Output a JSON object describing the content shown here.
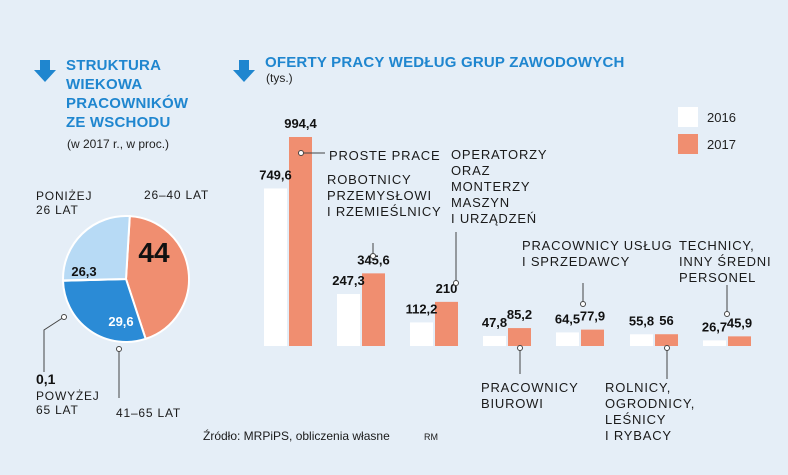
{
  "left": {
    "title": "STRUKTURA\nWIEKOWA\nPRACOWNIKÓW\nZE WSCHODU",
    "subtitle": "(w 2017 r., w proc.)"
  },
  "right": {
    "title": "OFERTY PRACY WEDŁUG GRUP ZAWODOWYCH",
    "subtitle": "(tys.)"
  },
  "source": "Źródło: MRPiPS, obliczenia własne",
  "author": "RM",
  "colors": {
    "accent": "#1f86cf",
    "y2016": "#ffffff",
    "y2017": "#f08e70",
    "pie_light": "#b7daf5",
    "pie_mid": "#2b8bd6",
    "pie_orange": "#f08e70"
  },
  "chart_data": [
    {
      "type": "pie",
      "title": "STRUKTURA WIEKOWA PRACOWNIKÓW ZE WSCHODU",
      "slices": [
        {
          "label": "26–40 LAT",
          "value": 44,
          "display": "44"
        },
        {
          "label": "41–65 LAT",
          "value": 29.6,
          "display": "29,6"
        },
        {
          "label": "POWYŻEJ 65 LAT",
          "value": 0.1,
          "display": "0,1"
        },
        {
          "label": "PONIŻEJ 26 LAT",
          "value": 26.3,
          "display": "26,3"
        }
      ]
    },
    {
      "type": "bar",
      "title": "OFERTY PRACY WEDŁUG GRUP ZAWODOWYCH",
      "unit": "(tys.)",
      "legend": [
        "2016",
        "2017"
      ],
      "categories": [
        "PROSTE PRACE",
        "ROBOTNICY\nPRZEMYSŁOWI\nI RZEMIEŚLNICY",
        "OPERATORZY\nORAZ\nMONTERZY\nMASZYN\nI URZĄDZEŃ",
        "PRACOWNICY\nBIUROWI",
        "PRACOWNICY USŁUG\nI SPRZEDAWCY",
        "ROLNICY,\nOGRODNICY,\nLEŚNICY\nI RYBACY",
        "TECHNICY,\nINNY ŚREDNI\nPERSONEL"
      ],
      "series": [
        {
          "name": "2016",
          "values": [
            749.6,
            247.3,
            112.2,
            47.8,
            64.5,
            55.8,
            26.7
          ],
          "labels": [
            "749,6",
            "247,3",
            "112,2",
            "47,8",
            "64,5",
            "55,8",
            "26,7"
          ]
        },
        {
          "name": "2017",
          "values": [
            994.4,
            345.6,
            210,
            85.2,
            77.9,
            56,
            45.9
          ],
          "labels": [
            "994,4",
            "345,6",
            "210",
            "85,2",
            "77,9",
            "56",
            "45,9"
          ]
        }
      ]
    }
  ]
}
